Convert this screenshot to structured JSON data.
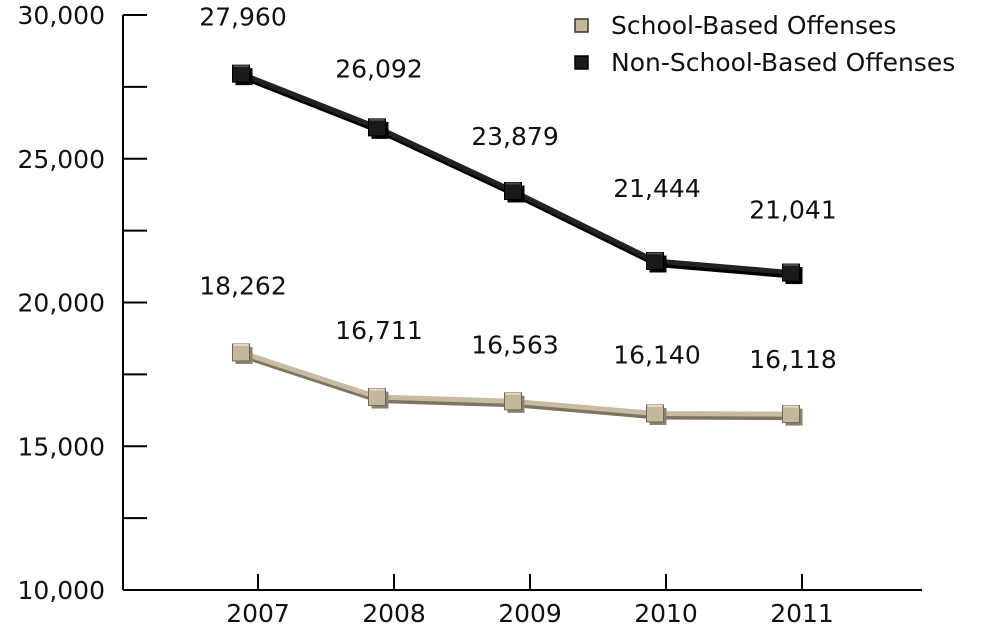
{
  "chart_data": {
    "type": "line",
    "categories": [
      "2007",
      "2008",
      "2009",
      "2010",
      "2011"
    ],
    "series": [
      {
        "name": "School-Based Offenses",
        "values": [
          18262,
          16711,
          16563,
          16140,
          16118
        ],
        "data_labels": [
          "18,262",
          "16,711",
          "16,563",
          "16,140",
          "16,118"
        ],
        "color": "#c8bba0"
      },
      {
        "name": "Non-School-Based Offenses",
        "values": [
          27960,
          26092,
          23879,
          21444,
          21041
        ],
        "data_labels": [
          "27,960",
          "26,092",
          "23,879",
          "21,444",
          "21,041"
        ],
        "color": "#1a1a1a"
      }
    ],
    "y_ticks": [
      "10,000",
      "15,000",
      "20,000",
      "25,000",
      "30,000"
    ],
    "ylim": [
      10000,
      30000
    ],
    "title": "",
    "xlabel": "",
    "ylabel": "",
    "legend_position": "top-right",
    "grid": false
  }
}
